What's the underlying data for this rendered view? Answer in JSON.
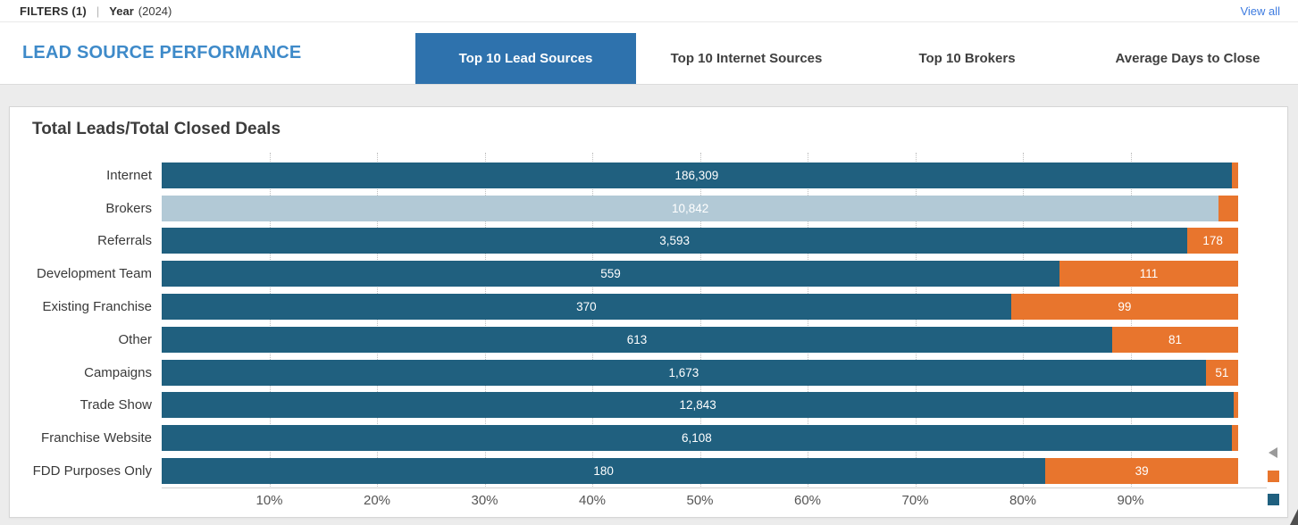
{
  "filter_bar": {
    "filters_label": "FILTERS (1)",
    "separator": "|",
    "filter_name": "Year",
    "filter_value": "(2024)",
    "view_all": "View all"
  },
  "header": {
    "title": "LEAD SOURCE PERFORMANCE",
    "tabs": [
      {
        "label": "Top 10 Lead Sources",
        "active": true
      },
      {
        "label": "Top 10 Internet Sources",
        "active": false
      },
      {
        "label": "Top 10 Brokers",
        "active": false
      },
      {
        "label": "Average Days to Close",
        "active": false
      }
    ]
  },
  "chart_data": {
    "type": "bar",
    "variant": "horizontal-100pct-stacked",
    "title": "Total Leads/Total Closed Deals",
    "categories": [
      "Internet",
      "Brokers",
      "Referrals",
      "Development Team",
      "Existing Franchise",
      "Other",
      "Campaigns",
      "Trade Show",
      "Franchise Website",
      "FDD Purposes Only"
    ],
    "series": [
      {
        "name": "Total Leads",
        "color": "#20607f",
        "labels": [
          "186,309",
          "10,842",
          "3,593",
          "559",
          "370",
          "613",
          "1,673",
          "12,843",
          "6,108",
          "180"
        ],
        "pct": [
          99.4,
          98.2,
          95.3,
          83.4,
          78.9,
          88.3,
          97.0,
          99.6,
          99.4,
          82.1
        ]
      },
      {
        "name": "Total Closed Deals",
        "color": "#e8752d",
        "labels": [
          "",
          "",
          "178",
          "111",
          "99",
          "81",
          "51",
          "",
          "",
          "39"
        ],
        "pct": [
          0.6,
          1.8,
          4.7,
          16.6,
          21.1,
          11.7,
          3.0,
          0.4,
          0.6,
          17.9
        ]
      }
    ],
    "highlighted_category": "Brokers",
    "highlight_color": "#b2c9d6",
    "x_ticks": [
      "10%",
      "20%",
      "30%",
      "40%",
      "50%",
      "60%",
      "70%",
      "80%",
      "90%"
    ],
    "xlim": [
      0,
      100
    ],
    "grid": "dotted-vertical",
    "legend_position": "collapsed-right"
  }
}
